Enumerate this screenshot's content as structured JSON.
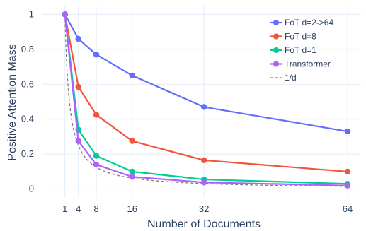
{
  "chart_data": {
    "type": "line",
    "title": "",
    "xlabel": "Number of Documents",
    "ylabel": "Positive Attention Mass",
    "x": [
      1,
      4,
      8,
      16,
      32,
      64
    ],
    "xticks": [
      1,
      4,
      8,
      16,
      32,
      64
    ],
    "yticks": [
      0,
      0.2,
      0.4,
      0.6,
      0.8,
      1
    ],
    "ytick_labels": [
      "0",
      "0.2",
      "0.4",
      "0.6",
      "0.8",
      "1"
    ],
    "xlim": [
      -4,
      67
    ],
    "ylim": [
      -0.05,
      1.05
    ],
    "grid": true,
    "legend_position": "top-right",
    "series": [
      {
        "name": "FoT d=2->64",
        "color": "#636efa",
        "values": [
          1.0,
          0.86,
          0.77,
          0.65,
          0.47,
          0.33
        ]
      },
      {
        "name": "FoT d=8",
        "color": "#ef553b",
        "values": [
          1.0,
          0.585,
          0.425,
          0.275,
          0.165,
          0.1
        ]
      },
      {
        "name": "FoT d=1",
        "color": "#00cc96",
        "values": [
          1.0,
          0.34,
          0.19,
          0.1,
          0.055,
          0.03
        ]
      },
      {
        "name": "Transformer",
        "color": "#ab63fa",
        "values": [
          1.0,
          0.275,
          0.14,
          0.07,
          0.038,
          0.02
        ]
      }
    ],
    "reference": {
      "name": "1/d",
      "color": "#7f7f7f",
      "dash": true
    }
  }
}
